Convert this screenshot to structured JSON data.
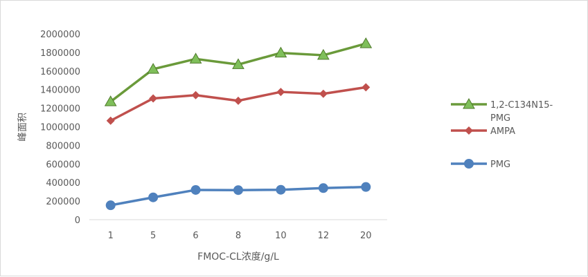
{
  "chart_data": {
    "type": "line",
    "title": "",
    "xlabel": "FMOC-CL浓度/g/L",
    "ylabel": "峰面积",
    "categories": [
      "1",
      "5",
      "6",
      "8",
      "10",
      "12",
      "20"
    ],
    "ylim": [
      0,
      2000000
    ],
    "yticks": [
      0,
      200000,
      400000,
      600000,
      800000,
      1000000,
      1200000,
      1400000,
      1600000,
      1800000,
      2000000
    ],
    "grid": false,
    "legend_position": "right",
    "series": [
      {
        "name": "1,2-C134N15-PMG",
        "legend_lines": [
          "1,2-C134N15-",
          "PMG"
        ],
        "color": "#6a9a3a",
        "marker": "triangle",
        "values": [
          1270000,
          1620000,
          1730000,
          1670000,
          1795000,
          1770000,
          1895000
        ]
      },
      {
        "name": "AMPA",
        "legend_lines": [
          "AMPA"
        ],
        "color": "#c0504d",
        "marker": "diamond",
        "values": [
          1065000,
          1305000,
          1340000,
          1280000,
          1375000,
          1355000,
          1425000
        ]
      },
      {
        "name": "PMG",
        "legend_lines": [
          "PMG"
        ],
        "color": "#4f81bd",
        "marker": "circle",
        "values": [
          155000,
          240000,
          320000,
          318000,
          322000,
          340000,
          352000
        ]
      }
    ]
  }
}
